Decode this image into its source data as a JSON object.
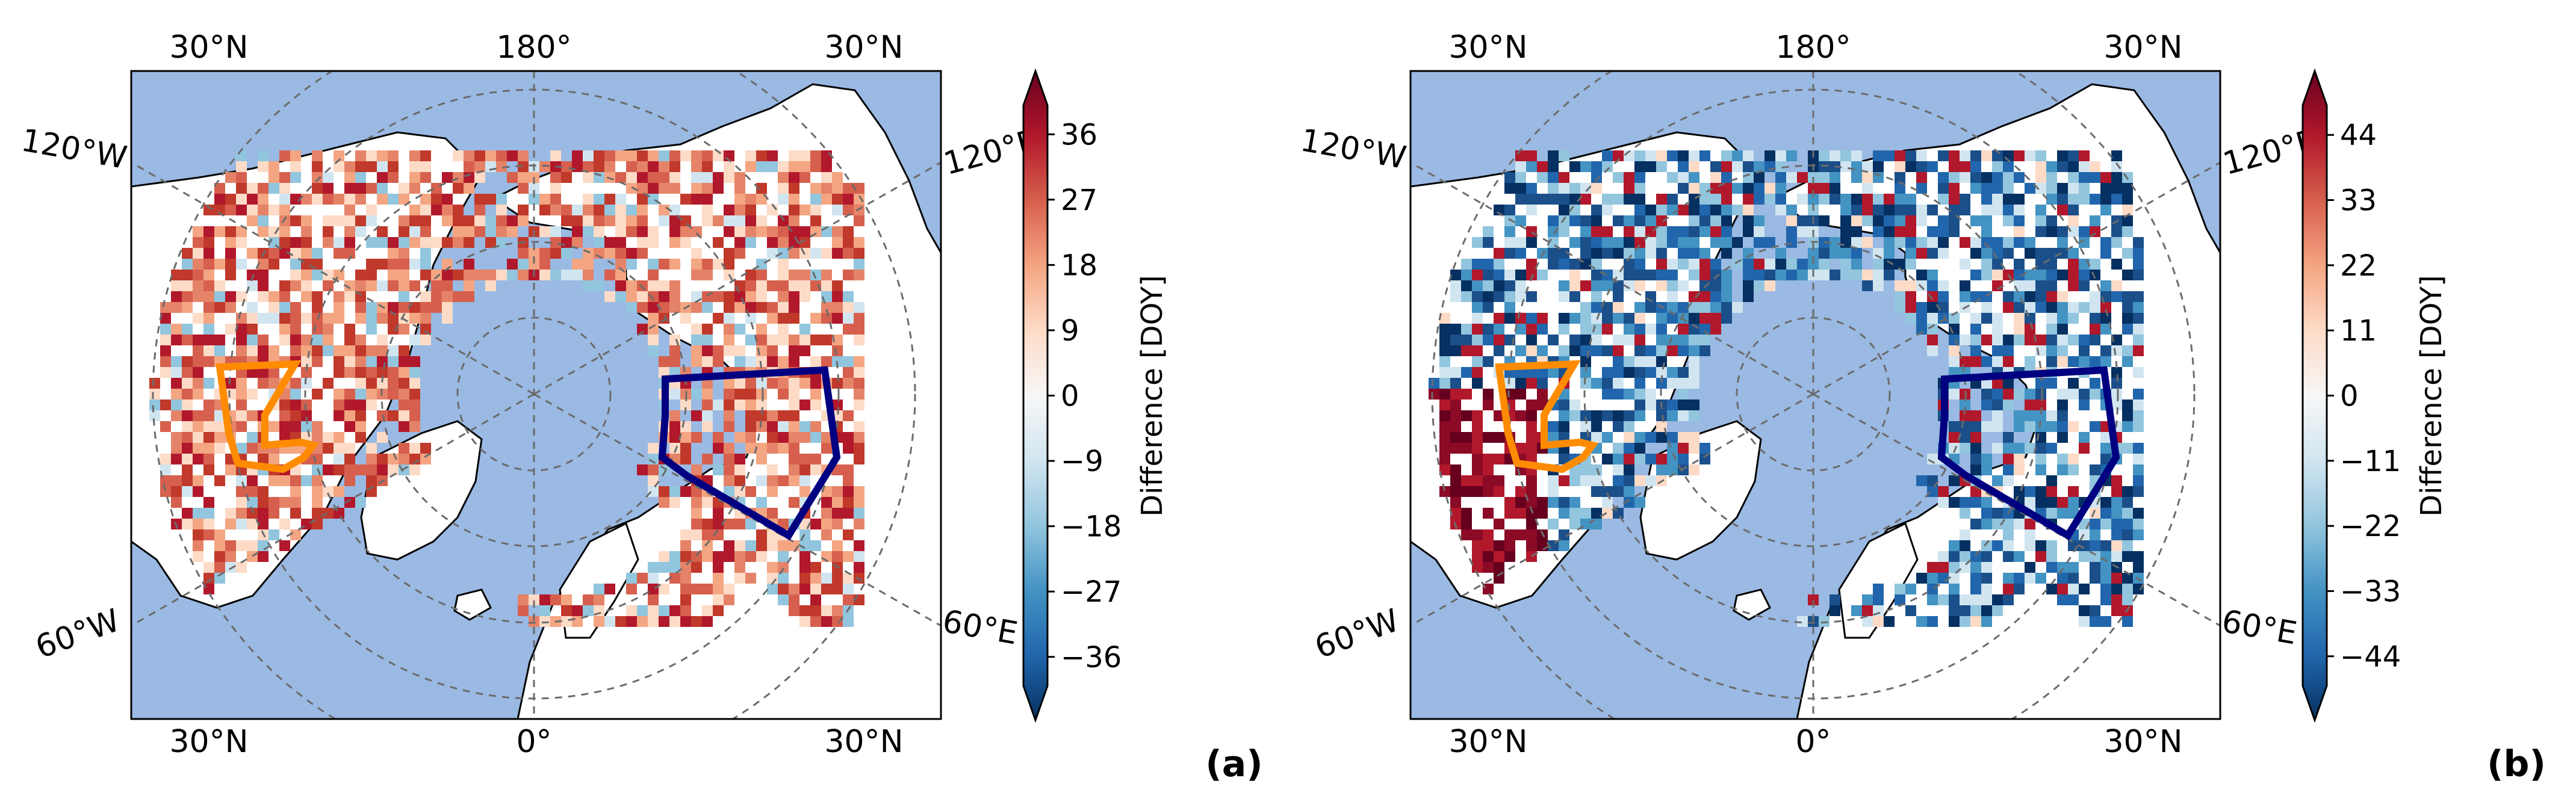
{
  "panels": [
    {
      "id": "a",
      "label": "(a)",
      "colorbar": {
        "title": "Difference [DOY]",
        "ticks": [
          "36",
          "27",
          "18",
          "9",
          "0",
          "−9",
          "−18",
          "−27",
          "−36"
        ],
        "min": -40,
        "max": 40
      },
      "lon_labels": {
        "top_left": "30°N",
        "top_center": "180°",
        "top_right": "30°N",
        "left_upper": "120°W",
        "left_lower": "60°W",
        "right_upper": "120°E",
        "right_lower": "60°E",
        "bottom_left": "30°N",
        "bottom_center": "0°",
        "bottom_right": "30°N"
      },
      "pattern": "warm",
      "regions": [
        {
          "name": "orange-region",
          "color": "#ff8c00"
        },
        {
          "name": "navy-region",
          "color": "#000080"
        }
      ]
    },
    {
      "id": "b",
      "label": "(b)",
      "colorbar": {
        "title": "Difference [DOY]",
        "ticks": [
          "44",
          "33",
          "22",
          "11",
          "0",
          "−11",
          "−22",
          "−33",
          "−44"
        ],
        "min": -49,
        "max": 49
      },
      "lon_labels": {
        "top_left": "30°N",
        "top_center": "180°",
        "top_right": "30°N",
        "left_upper": "120°W",
        "left_lower": "60°W",
        "right_upper": "120°E",
        "right_lower": "60°E",
        "bottom_left": "30°N",
        "bottom_center": "0°",
        "bottom_right": "30°N"
      },
      "pattern": "cold",
      "regions": [
        {
          "name": "orange-region",
          "color": "#ff8c00"
        },
        {
          "name": "navy-region",
          "color": "#000080"
        }
      ]
    }
  ],
  "colors": {
    "ocean": "#9ab9e3",
    "land": "#ffffff",
    "coast": "#000000",
    "grid": "#6b6b6b"
  }
}
